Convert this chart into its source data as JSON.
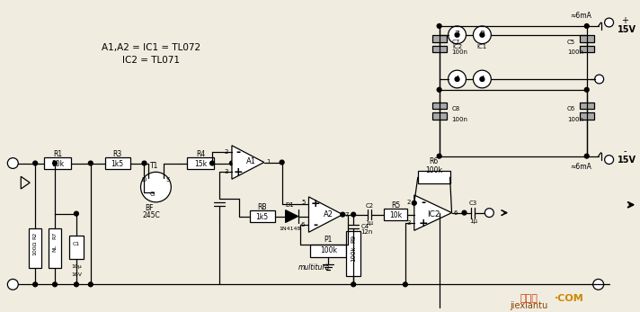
{
  "bg_color": "#f0ece0",
  "watermark": "jiexiantu",
  "watermark2": ".com",
  "watermark_color": "#cc2200",
  "watermark_color2": "#cc8800",
  "annotation1": "A1,A2 = IC1 = TL072",
  "annotation2": "IC2 = TL071",
  "multitura": "multitură",
  "approx_6mA": "≈6mA",
  "plus_15V": "+\n15V",
  "minus_15V": "-\n15V"
}
